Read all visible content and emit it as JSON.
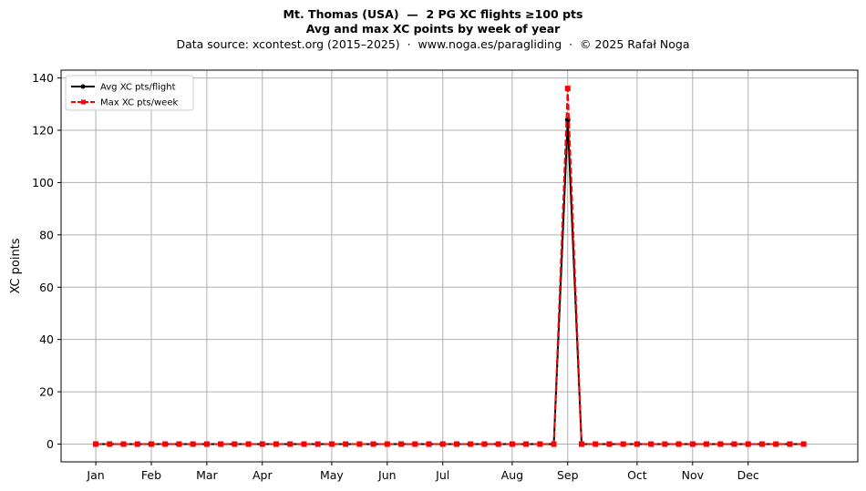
{
  "header": {
    "title_line1": "Mt. Thomas (USA)  —  2 PG XC flights ≥100 pts",
    "title_line2": "Avg and max XC points by week of year",
    "subtitle": "Data source: xcontest.org (2015–2025)  ·  www.noga.es/paragliding  ·  © 2025 Rafał Noga"
  },
  "chart_data": {
    "type": "line",
    "ylabel": "XC points",
    "xlabel": "",
    "ylim": [
      -6.8,
      143
    ],
    "xlim": [
      -2.5,
      54.9
    ],
    "yticks": [
      0,
      20,
      40,
      60,
      80,
      100,
      120,
      140
    ],
    "xticks": [
      {
        "label": "Jan",
        "x": 0
      },
      {
        "label": "Feb",
        "x": 4
      },
      {
        "label": "Mar",
        "x": 8
      },
      {
        "label": "Apr",
        "x": 12
      },
      {
        "label": "May",
        "x": 17
      },
      {
        "label": "Jun",
        "x": 21
      },
      {
        "label": "Jul",
        "x": 25
      },
      {
        "label": "Aug",
        "x": 30
      },
      {
        "label": "Sep",
        "x": 34
      },
      {
        "label": "Oct",
        "x": 39
      },
      {
        "label": "Nov",
        "x": 43
      },
      {
        "label": "Dec",
        "x": 47
      }
    ],
    "grid": true,
    "legend_position": "top-left",
    "x": [
      0,
      1,
      2,
      3,
      4,
      5,
      6,
      7,
      8,
      9,
      10,
      11,
      12,
      13,
      14,
      15,
      16,
      17,
      18,
      19,
      20,
      21,
      22,
      23,
      24,
      25,
      26,
      27,
      28,
      29,
      30,
      31,
      32,
      33,
      34,
      35,
      36,
      37,
      38,
      39,
      40,
      41,
      42,
      43,
      44,
      45,
      46,
      47,
      48,
      49,
      50,
      51
    ],
    "series": [
      {
        "name": "Avg XC pts/flight",
        "color": "#000000",
        "marker": "circle",
        "linestyle": "solid",
        "values": [
          0,
          0,
          0,
          0,
          0,
          0,
          0,
          0,
          0,
          0,
          0,
          0,
          0,
          0,
          0,
          0,
          0,
          0,
          0,
          0,
          0,
          0,
          0,
          0,
          0,
          0,
          0,
          0,
          0,
          0,
          0,
          0,
          0,
          0,
          124,
          0,
          0,
          0,
          0,
          0,
          0,
          0,
          0,
          0,
          0,
          0,
          0,
          0,
          0,
          0,
          0,
          0
        ]
      },
      {
        "name": "Max XC pts/week",
        "color": "#ff0000",
        "marker": "square",
        "linestyle": "dashed",
        "values": [
          0,
          0,
          0,
          0,
          0,
          0,
          0,
          0,
          0,
          0,
          0,
          0,
          0,
          0,
          0,
          0,
          0,
          0,
          0,
          0,
          0,
          0,
          0,
          0,
          0,
          0,
          0,
          0,
          0,
          0,
          0,
          0,
          0,
          0,
          136,
          0,
          0,
          0,
          0,
          0,
          0,
          0,
          0,
          0,
          0,
          0,
          0,
          0,
          0,
          0,
          0,
          0
        ]
      }
    ]
  }
}
